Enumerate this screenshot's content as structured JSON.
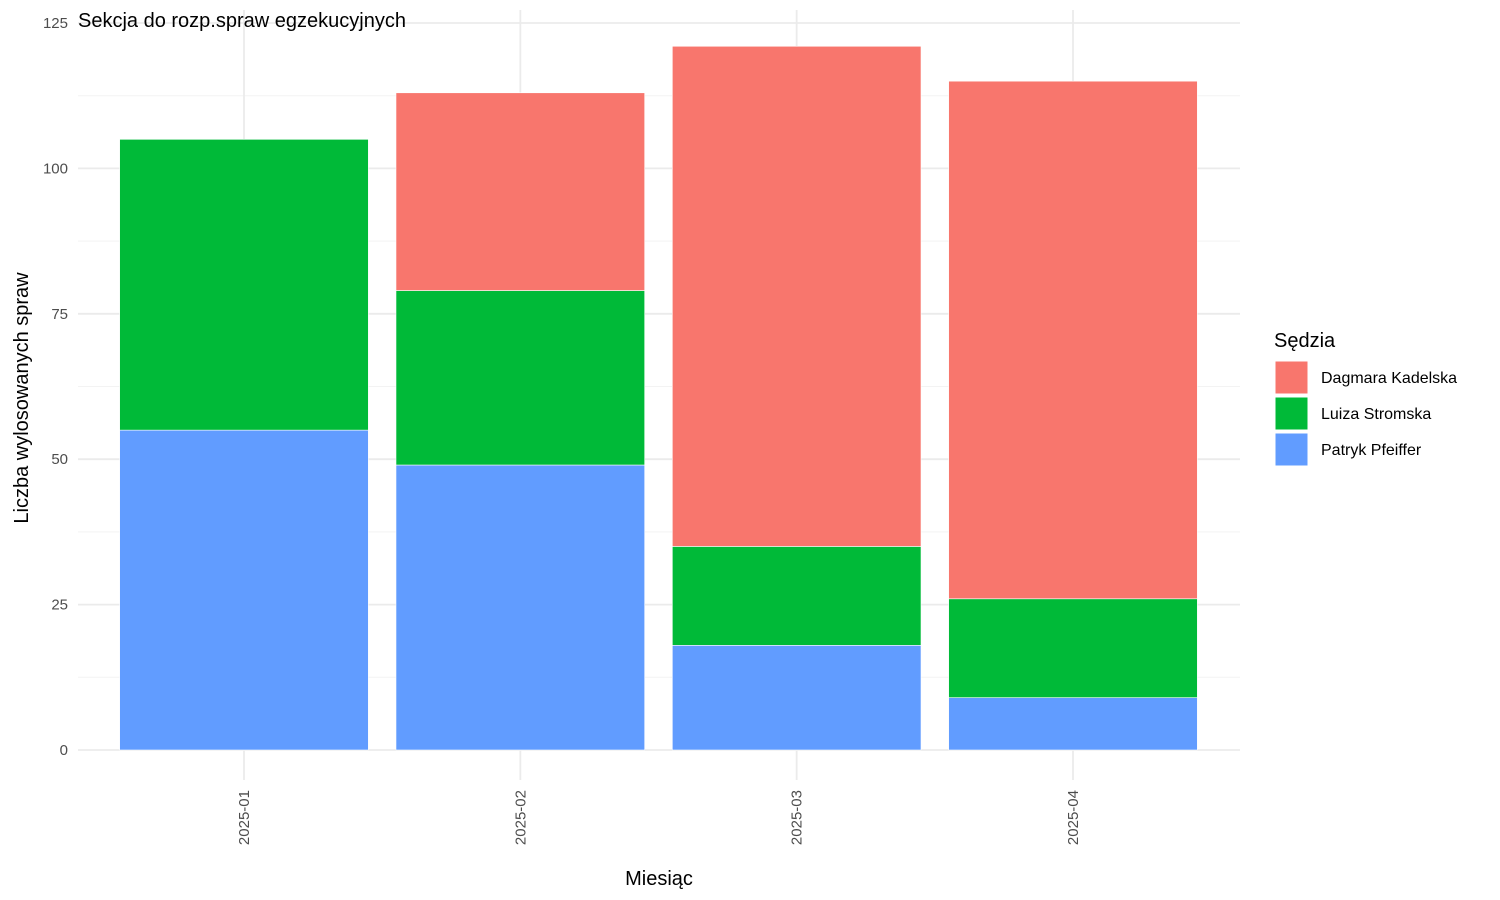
{
  "chart_data": {
    "type": "bar",
    "stacked": true,
    "title": "Sekcja do rozp.spraw egzekucyjnych",
    "xlabel": "Miesiąc",
    "ylabel": "Liczba wylosowanych spraw",
    "categories": [
      "2025-01",
      "2025-02",
      "2025-03",
      "2025-04"
    ],
    "ylim": [
      0,
      125
    ],
    "yticks": [
      0,
      25,
      50,
      75,
      100,
      125
    ],
    "grid": true,
    "legend": {
      "title": "Sędzia",
      "position": "right"
    },
    "series": [
      {
        "name": "Patryk Pfeiffer",
        "color": "#619CFF",
        "values": [
          55,
          49,
          18,
          9
        ]
      },
      {
        "name": "Luiza Stromska",
        "color": "#00BA38",
        "values": [
          50,
          30,
          17,
          17
        ]
      },
      {
        "name": "Dagmara Kadelska",
        "color": "#F8766D",
        "values": [
          0,
          34,
          86,
          89
        ]
      }
    ],
    "legend_order": [
      "Dagmara Kadelska",
      "Luiza Stromska",
      "Patryk Pfeiffer"
    ]
  }
}
